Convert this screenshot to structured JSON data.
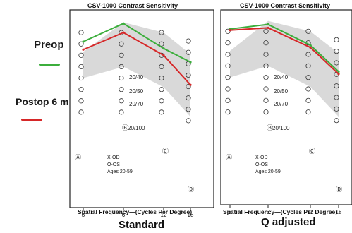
{
  "legend": {
    "preop_label": "Preop",
    "postop_label": "Postop 6 m",
    "preop_color": "#3cae3c",
    "postop_color": "#d62728"
  },
  "chart_data": [
    {
      "type": "line",
      "title": "CSV-1000 Contrast Sensitivity",
      "xlabel": "Spatial Frequency—(Cycles Per Degree)",
      "caption": "Standard",
      "x": [
        3,
        6,
        12,
        18
      ],
      "series": [
        {
          "name": "Preop",
          "color": "#3cae3c",
          "values": [
            7.2,
            8.8,
            6.6,
            5.4
          ]
        },
        {
          "name": "Postop 6 m",
          "color": "#d62728",
          "values": [
            6.5,
            8.0,
            6.0,
            3.4
          ]
        }
      ],
      "side_labels": [
        "Ⓐ",
        "Ⓑ",
        "Ⓒ",
        "Ⓓ"
      ],
      "acuity_labels": [
        "20/40",
        "20/50",
        "20/70",
        "20/100"
      ],
      "key": [
        "X-OD",
        "O-OS",
        "Ages 20-59"
      ],
      "grid": false
    },
    {
      "type": "line",
      "title": "CSV-1000 Contrast Sensitivity",
      "xlabel": "Spatial Frequency—(Cycles Per Degree)",
      "caption": "Q adjusted",
      "x": [
        3,
        6,
        12,
        18
      ],
      "series": [
        {
          "name": "Preop",
          "color": "#3cae3c",
          "values": [
            8.2,
            8.6,
            6.8,
            4.5
          ]
        },
        {
          "name": "Postop 6 m",
          "color": "#d62728",
          "values": [
            8.1,
            8.3,
            6.6,
            4.3
          ]
        }
      ],
      "side_labels": [
        "Ⓐ",
        "Ⓑ",
        "Ⓒ",
        "Ⓓ"
      ],
      "acuity_labels": [
        "20/40",
        "20/50",
        "20/70",
        "20/100"
      ],
      "key": [
        "X-OD",
        "O-OS",
        "Ages 20-59"
      ],
      "grid": false
    }
  ]
}
